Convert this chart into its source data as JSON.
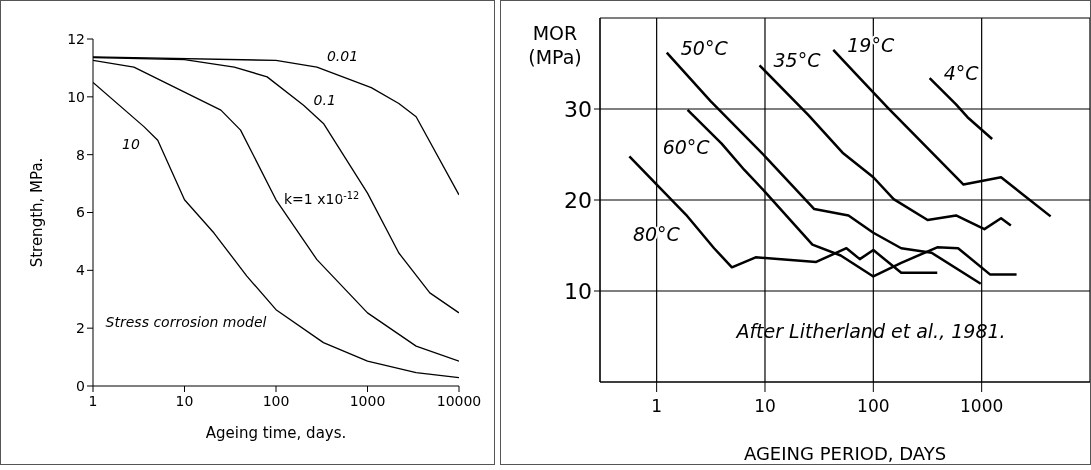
{
  "chart_data": [
    {
      "type": "line",
      "xlabel": "Ageing time, days.",
      "ylabel": "Strength, MPa.",
      "log": "x",
      "xlim": [
        1,
        10000
      ],
      "xticks": [
        1,
        10,
        100,
        1000,
        10000
      ],
      "ylim": [
        0,
        12
      ],
      "yticks": [
        0,
        2,
        4,
        6,
        8,
        10,
        12
      ],
      "annotations": [
        "Stress corrosion model"
      ],
      "series": [
        {
          "name": "10",
          "color": "#000000",
          "x": [
            1,
            3.6,
            5.1,
            10,
            21,
            48,
            100,
            330,
            1000,
            3400,
            10000
          ],
          "values": [
            10.5,
            8.97,
            8.5,
            6.44,
            5.29,
            3.8,
            2.64,
            1.5,
            0.86,
            0.46,
            0.29
          ]
        },
        {
          "name": "k=1 x10$^{-12}$",
          "color": "#000000",
          "x": [
            1,
            2.8,
            25,
            41,
            100,
            280,
            1000,
            3400,
            10000
          ],
          "values": [
            11.26,
            11.03,
            9.54,
            8.85,
            6.44,
            4.37,
            2.53,
            1.38,
            0.86
          ]
        },
        {
          "name": "0.1",
          "color": "#000000",
          "x": [
            1,
            10,
            35,
            80,
            200,
            330,
            1000,
            2200,
            4800,
            10000
          ],
          "values": [
            11.36,
            11.29,
            11.03,
            10.69,
            9.71,
            9.08,
            6.67,
            4.6,
            3.22,
            2.53
          ]
        },
        {
          "name": "0.01",
          "color": "#000000",
          "x": [
            1,
            100,
            280,
            1100,
            2200,
            3400,
            10000
          ],
          "values": [
            11.38,
            11.26,
            11.03,
            10.32,
            9.77,
            9.31,
            6.61
          ]
        }
      ]
    },
    {
      "type": "line",
      "xlabel": "AGEING PERIOD, DAYS",
      "ylabel": "MOR (MPa)",
      "log": "x",
      "grid": true,
      "xlim": [
        0.3,
        10000
      ],
      "xticks": [
        1,
        10,
        100,
        1000
      ],
      "ylim": [
        0,
        40
      ],
      "yticks": [
        10,
        20,
        30
      ],
      "annotations": [
        "After Litherland et al., 1981."
      ],
      "series": [
        {
          "name": "50°C",
          "color": "#000000",
          "x": [
            1.24,
            3.13,
            10,
            28.5,
            59,
            100,
            181,
            345,
            980
          ],
          "values": [
            36.2,
            30.9,
            24.8,
            19.0,
            18.3,
            16.4,
            14.7,
            14.2,
            10.8
          ]
        },
        {
          "name": "60°C",
          "color": "#000000",
          "x": [
            1.93,
            3.98,
            6.45,
            10,
            27.4,
            50,
            100,
            181,
            389,
            606,
            1200,
            2100
          ],
          "values": [
            29.9,
            26.2,
            23.3,
            20.9,
            15.1,
            13.9,
            11.6,
            13.1,
            14.8,
            14.7,
            11.8,
            11.8
          ]
        },
        {
          "name": "80°C",
          "color": "#000000",
          "x": [
            0.56,
            1.86,
            3.39,
            4.95,
            8.2,
            29.7,
            56.5,
            75,
            100,
            181,
            389
          ],
          "values": [
            24.8,
            18.4,
            14.7,
            12.6,
            13.7,
            13.2,
            14.7,
            13.5,
            14.5,
            12.0,
            12.0
          ]
        },
        {
          "name": "35°C",
          "color": "#000000",
          "x": [
            8.9,
            25.3,
            52,
            100,
            154,
            317,
            580,
            1060,
            1510,
            1860
          ],
          "values": [
            34.8,
            29.3,
            25.2,
            22.5,
            20.1,
            17.8,
            18.3,
            16.8,
            18.0,
            17.2
          ]
        },
        {
          "name": "19°C",
          "color": "#000000",
          "x": [
            42.7,
            75,
            137,
            680,
            1510,
            4330
          ],
          "values": [
            36.5,
            33.4,
            30.1,
            21.7,
            22.5,
            18.2
          ]
        },
        {
          "name": "4°C",
          "color": "#000000",
          "x": [
            331,
            580,
            740,
            1250
          ],
          "values": [
            33.4,
            30.5,
            29.1,
            26.7
          ]
        }
      ]
    }
  ]
}
